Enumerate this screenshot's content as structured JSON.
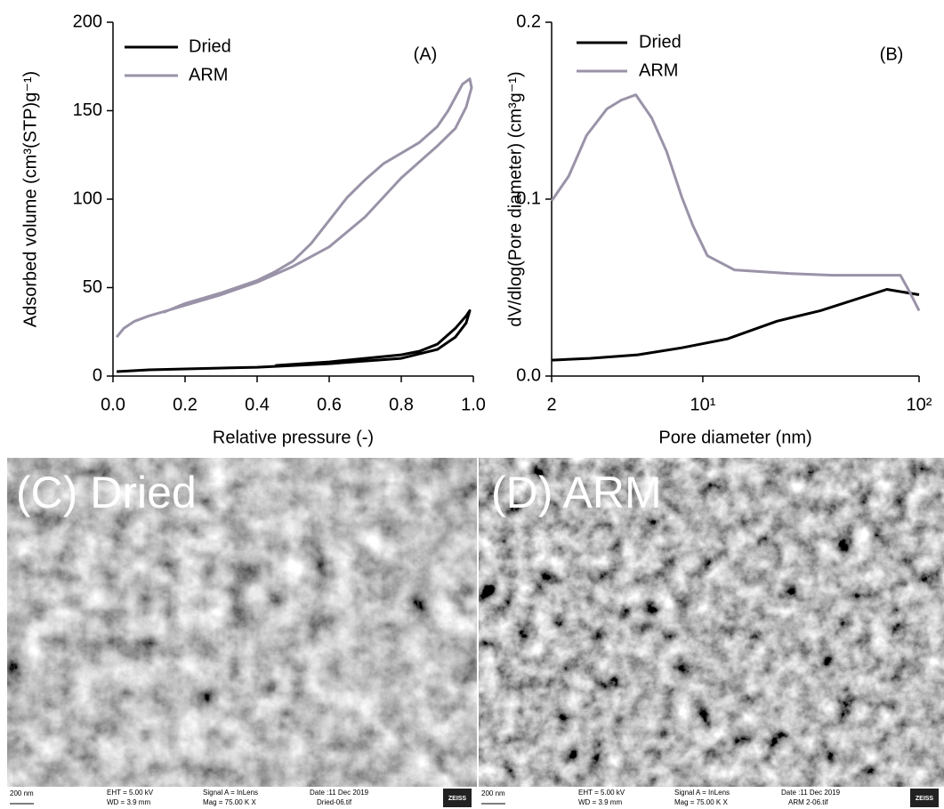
{
  "chart_data": [
    {
      "type": "line",
      "annotation": "(A)",
      "xlabel": "Relative pressure (-)",
      "ylabel": "Adsorbed volume (cm³(STP)g⁻¹)",
      "xlim": [
        0,
        1
      ],
      "ylim": [
        0,
        200
      ],
      "xticks": [
        {
          "value": 0,
          "label": "0.0"
        },
        0.2,
        0.4,
        0.6,
        0.8,
        {
          "value": 1,
          "label": "1.0"
        }
      ],
      "yticks": [
        0,
        50,
        100,
        150,
        200
      ],
      "legend": "upper left",
      "series": [
        {
          "name": "Dried",
          "color": "#000000",
          "x": [
            0.01,
            0.1,
            0.2,
            0.4,
            0.6,
            0.8,
            0.9,
            0.95,
            0.98,
            0.99,
            0.98,
            0.95,
            0.9,
            0.85,
            0.8,
            0.6,
            0.45
          ],
          "values": [
            2.5,
            3.5,
            4,
            5,
            7,
            10,
            15,
            22,
            30,
            37,
            34,
            27,
            18,
            14,
            12,
            8,
            6
          ]
        },
        {
          "name": "ARM",
          "color": "#9a93a8",
          "x": [
            0.01,
            0.03,
            0.06,
            0.1,
            0.15,
            0.2,
            0.3,
            0.4,
            0.5,
            0.6,
            0.7,
            0.8,
            0.9,
            0.95,
            0.98,
            0.995,
            0.99,
            0.97,
            0.93,
            0.9,
            0.85,
            0.8,
            0.75,
            0.7,
            0.65,
            0.6,
            0.55,
            0.5,
            0.45,
            0.4,
            0.3,
            0.2,
            0.14
          ],
          "values": [
            22,
            27,
            31,
            34,
            37,
            40,
            46,
            53,
            62,
            73,
            90,
            112,
            130,
            140,
            152,
            163,
            168,
            165,
            150,
            141,
            132,
            126,
            120,
            111,
            101,
            88,
            75,
            65,
            59,
            54,
            47,
            41,
            36
          ]
        }
      ]
    },
    {
      "type": "line",
      "annotation": "(B)",
      "xlabel": "Pore diameter (nm)",
      "ylabel": "dV/dlog(Pore diameter) (cm³g⁻¹)",
      "xscale": "log",
      "xlim": [
        2,
        100
      ],
      "ylim": [
        0,
        0.2
      ],
      "xticks": [
        2,
        {
          "value": 10,
          "label": "10¹"
        },
        {
          "value": 100,
          "label": "10²"
        }
      ],
      "yticks": [
        {
          "value": 0,
          "label": "0.0"
        },
        0.1,
        0.2
      ],
      "legend": "upper left",
      "series": [
        {
          "name": "Dried",
          "color": "#000000",
          "x": [
            2,
            3,
            5,
            8,
            13,
            22,
            35,
            71,
            100
          ],
          "values": [
            0.009,
            0.01,
            0.012,
            0.016,
            0.021,
            0.031,
            0.037,
            0.049,
            0.046
          ]
        },
        {
          "name": "ARM",
          "color": "#9a93a8",
          "x": [
            2,
            2.4,
            2.9,
            3.6,
            4.2,
            4.9,
            5.8,
            6.8,
            8,
            9,
            10.5,
            14,
            25,
            40,
            60,
            82,
            90,
            100
          ],
          "values": [
            0.099,
            0.113,
            0.136,
            0.151,
            0.156,
            0.159,
            0.146,
            0.127,
            0.101,
            0.085,
            0.068,
            0.06,
            0.058,
            0.057,
            0.057,
            0.057,
            0.048,
            0.037
          ]
        }
      ]
    }
  ],
  "images": [
    {
      "label": "(C) Dried",
      "info": {
        "scale": "200 nm",
        "eht": "EHT = 5.00 kV",
        "wd": "WD = 3.9 mm",
        "signal": "Signal A = InLens",
        "mag": "Mag = 75.00 K X",
        "date": "Date :11 Dec 2019",
        "file": "Dried-06.tif",
        "brand": "ZEISS"
      }
    },
    {
      "label": "(D) ARM",
      "info": {
        "scale": "200 nm",
        "eht": "EHT = 5.00 kV",
        "wd": "WD = 3.9 mm",
        "signal": "Signal A = InLens",
        "mag": "Mag = 75.00 K X",
        "date": "Date :11 Dec 2019",
        "file": "ARM 2-06.tif",
        "brand": "ZEISS"
      }
    }
  ]
}
